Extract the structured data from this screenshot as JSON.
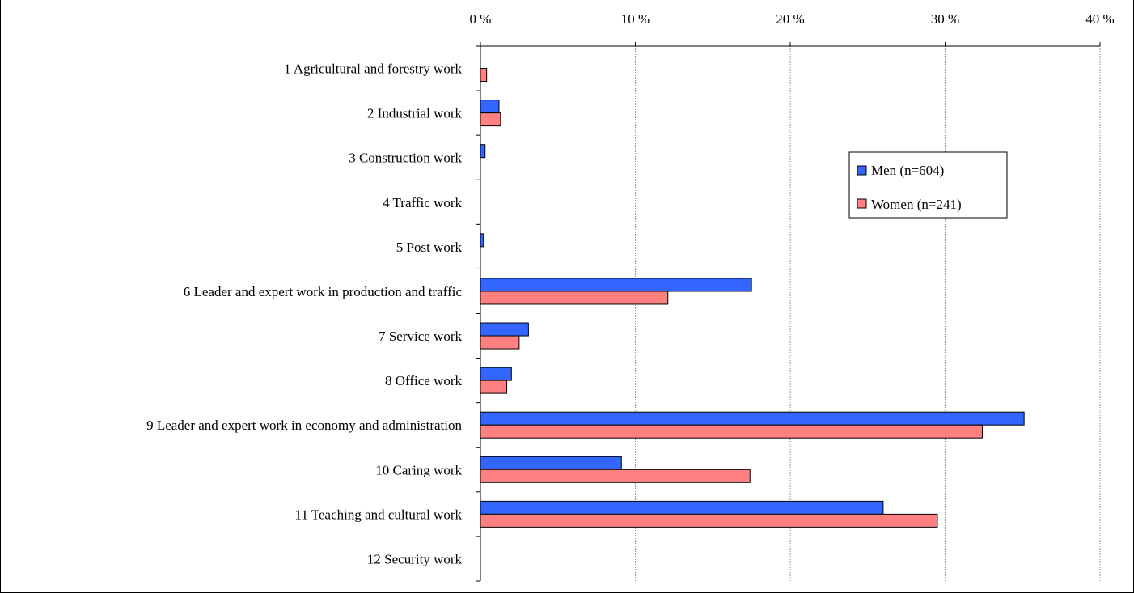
{
  "chart_data": {
    "type": "bar",
    "orientation": "horizontal",
    "title": "",
    "xlabel": "",
    "ylabel": "",
    "xlim": [
      0,
      40
    ],
    "x_ticks": [
      "0 %",
      "10 %",
      "20 %",
      "30 %",
      "40 %"
    ],
    "x_tick_values": [
      0,
      10,
      20,
      30,
      40
    ],
    "grid": "vertical",
    "legend_position": "right",
    "categories": [
      "1 Agricultural and forestry work",
      "2 Industrial work",
      "3 Construction work",
      "4 Traffic work",
      "5 Post work",
      "6 Leader and expert work in production and traffic",
      "7 Service work",
      "8 Office work",
      "9 Leader and expert work in economy and administration",
      "10 Caring work",
      "11 Teaching and cultural work",
      "12 Security work"
    ],
    "series": [
      {
        "name": "Men (n=604)",
        "color": "#3366FF",
        "values": [
          0,
          1.2,
          0.3,
          0,
          0.2,
          17.5,
          3.1,
          2.0,
          35.1,
          9.1,
          26.0,
          0
        ]
      },
      {
        "name": "Women (n=241)",
        "color": "#FF8080",
        "values": [
          0.4,
          1.3,
          0,
          0,
          0,
          12.1,
          2.5,
          1.7,
          32.4,
          17.4,
          29.5,
          0
        ]
      }
    ]
  }
}
